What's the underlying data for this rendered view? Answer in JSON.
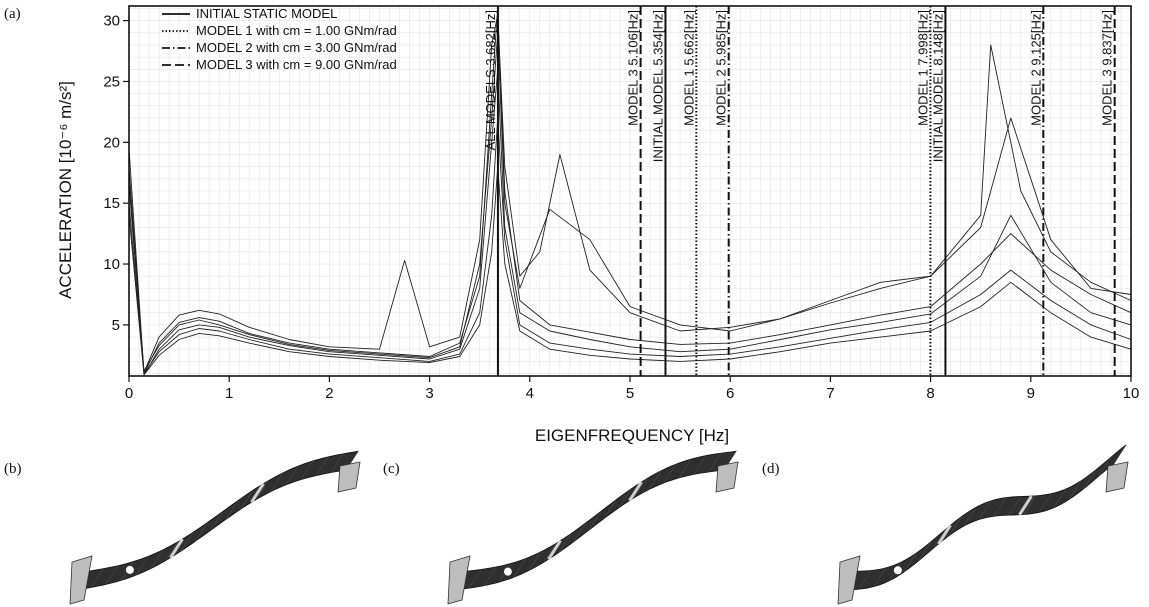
{
  "chart_data": [
    {
      "type": "line",
      "panel_label": "(a)",
      "title": "",
      "xlabel": "EIGENFREQUENCY [Hz]",
      "ylabel": "ACCELERATION [10⁻⁶ m/s²]",
      "xlim": [
        0,
        10
      ],
      "ylim": [
        0.8,
        31.2
      ],
      "x_ticks": [
        0,
        1,
        2,
        3,
        4,
        5,
        6,
        7,
        8,
        9,
        10
      ],
      "y_ticks": [
        5,
        10,
        15,
        20,
        25,
        30
      ],
      "grid": true,
      "legend_position": "top-left",
      "legend": [
        {
          "label": "INITIAL STATIC MODEL",
          "style": "solid"
        },
        {
          "label": "MODEL 1 with cm = 1.00 GNm/rad",
          "style": "dotted"
        },
        {
          "label": "MODEL 2 with cm = 3.00 GNm/rad",
          "style": "dashdot"
        },
        {
          "label": "MODEL 3 with cm = 9.00 GNm/rad",
          "style": "dashed"
        }
      ],
      "vertical_lines": [
        {
          "x": 3.682,
          "label": "ALL MODELS 3.682[Hz]",
          "style": "solid"
        },
        {
          "x": 5.106,
          "label": "MODEL 3   5.106[Hz]",
          "style": "dashed"
        },
        {
          "x": 5.354,
          "label": "INITIAL MODEL   5.354[Hz]",
          "style": "solid"
        },
        {
          "x": 5.662,
          "label": "MODEL 1   5.662[Hz]",
          "style": "dotted"
        },
        {
          "x": 5.985,
          "label": "MODEL 2   5.985[Hz]",
          "style": "dashdot"
        },
        {
          "x": 7.998,
          "label": "MODEL 1   7.998[Hz]",
          "style": "dotted"
        },
        {
          "x": 8.148,
          "label": "INITIAL MODEL   8.148[Hz]",
          "style": "solid"
        },
        {
          "x": 9.125,
          "label": "MODEL 2   9.125[Hz]",
          "style": "dashdot"
        },
        {
          "x": 9.837,
          "label": "MODEL 3   9.837[Hz]",
          "style": "dashed"
        }
      ],
      "series": [
        {
          "values_x": [
            0,
            0.15,
            0.3,
            0.5,
            0.7,
            0.9,
            1.2,
            1.6,
            2.0,
            2.5,
            3.0,
            3.3,
            3.5,
            3.62,
            3.68,
            3.75,
            3.9,
            4.2,
            4.6,
            5.0,
            5.5,
            6.0,
            6.5,
            7.0,
            7.5,
            8.0,
            8.5,
            8.8,
            9.2,
            9.6,
            10.0
          ],
          "values_y": [
            19.5,
            1.0,
            3.5,
            5.2,
            5.6,
            5.3,
            4.3,
            3.5,
            3.0,
            2.7,
            2.4,
            3.5,
            9.0,
            24.0,
            31.0,
            16.0,
            7.0,
            5.0,
            4.4,
            3.8,
            3.4,
            3.5,
            4.2,
            5.0,
            5.8,
            6.5,
            10.0,
            12.5,
            9.5,
            7.5,
            6.0
          ]
        },
        {
          "values_x": [
            0,
            0.15,
            0.3,
            0.5,
            0.7,
            0.9,
            1.2,
            1.6,
            2.0,
            2.5,
            3.0,
            3.3,
            3.5,
            3.62,
            3.68,
            3.75,
            3.9,
            4.2,
            4.6,
            5.0,
            5.5,
            6.0,
            6.5,
            7.0,
            7.5,
            8.0,
            8.5,
            8.8,
            9.2,
            9.6,
            10.0
          ],
          "values_y": [
            18.0,
            0.9,
            3.0,
            4.6,
            5.0,
            4.8,
            4.0,
            3.3,
            2.8,
            2.5,
            2.2,
            3.0,
            8.0,
            20.0,
            26.0,
            13.0,
            6.0,
            4.5,
            3.8,
            3.2,
            2.8,
            3.0,
            3.8,
            4.6,
            5.2,
            5.9,
            9.0,
            14.0,
            8.5,
            6.0,
            5.0
          ]
        },
        {
          "values_x": [
            0,
            0.15,
            0.3,
            0.5,
            0.7,
            0.9,
            1.2,
            1.6,
            2.0,
            2.5,
            2.75,
            3.0,
            3.3,
            3.5,
            3.62,
            3.68,
            3.75,
            3.9,
            4.1,
            4.3,
            4.6,
            5.0,
            5.5,
            6.0,
            6.5,
            7.0,
            7.5,
            8.0,
            8.5,
            8.6,
            8.9,
            9.2,
            9.6,
            10.0
          ],
          "values_y": [
            16.5,
            1.1,
            4.0,
            5.8,
            6.2,
            5.9,
            4.8,
            3.8,
            3.2,
            3.0,
            10.3,
            3.2,
            4.0,
            12.0,
            28.0,
            30.5,
            18.0,
            9.0,
            11.0,
            19.0,
            9.5,
            6.0,
            4.5,
            4.8,
            5.5,
            6.8,
            8.0,
            9.0,
            14.0,
            28.0,
            16.0,
            11.0,
            8.5,
            7.0
          ]
        },
        {
          "values_x": [
            0,
            0.15,
            0.3,
            0.5,
            0.7,
            0.9,
            1.2,
            1.6,
            2.0,
            2.5,
            3.0,
            3.3,
            3.5,
            3.62,
            3.68,
            3.75,
            3.9,
            4.2,
            4.6,
            5.0,
            5.5,
            6.0,
            6.5,
            7.0,
            7.5,
            8.0,
            8.5,
            8.8,
            9.2,
            9.6,
            10.0
          ],
          "values_y": [
            15.0,
            1.0,
            2.8,
            4.2,
            4.7,
            4.5,
            3.8,
            3.0,
            2.6,
            2.3,
            2.0,
            2.6,
            6.0,
            14.0,
            22.0,
            12.0,
            5.0,
            3.5,
            3.0,
            2.6,
            2.4,
            2.6,
            3.2,
            3.9,
            4.6,
            5.2,
            7.5,
            9.5,
            7.0,
            5.0,
            3.8
          ]
        },
        {
          "values_x": [
            0,
            0.15,
            0.3,
            0.5,
            0.7,
            0.9,
            1.2,
            1.6,
            2.0,
            2.5,
            3.0,
            3.3,
            3.5,
            3.62,
            3.68,
            3.75,
            3.9,
            4.2,
            4.6,
            5.0,
            5.5,
            6.0,
            6.5,
            7.0,
            7.5,
            8.0,
            8.5,
            8.8,
            9.2,
            9.6,
            10.0
          ],
          "values_y": [
            17.0,
            1.2,
            3.3,
            5.0,
            5.4,
            5.0,
            4.2,
            3.4,
            2.9,
            2.6,
            2.3,
            3.2,
            10.0,
            22.0,
            29.0,
            15.0,
            8.0,
            14.5,
            12.0,
            6.5,
            5.0,
            4.5,
            5.5,
            7.0,
            8.5,
            9.0,
            13.0,
            22.0,
            12.0,
            8.0,
            7.5
          ]
        },
        {
          "values_x": [
            0,
            0.15,
            0.3,
            0.5,
            0.7,
            0.9,
            1.2,
            1.6,
            2.0,
            2.5,
            3.0,
            3.3,
            3.5,
            3.62,
            3.68,
            3.75,
            3.9,
            4.2,
            4.6,
            5.0,
            5.5,
            6.0,
            6.5,
            7.0,
            7.5,
            8.0,
            8.5,
            8.8,
            9.2,
            9.6,
            10.0
          ],
          "values_y": [
            14.0,
            0.9,
            2.5,
            3.8,
            4.3,
            4.1,
            3.5,
            2.8,
            2.4,
            2.1,
            1.9,
            2.4,
            5.0,
            11.0,
            18.0,
            10.0,
            4.5,
            3.0,
            2.5,
            2.2,
            2.0,
            2.2,
            2.8,
            3.5,
            4.0,
            4.5,
            6.5,
            8.5,
            6.0,
            4.0,
            3.0
          ]
        }
      ]
    }
  ],
  "deformed_shapes": [
    {
      "panel_label": "(b)"
    },
    {
      "panel_label": "(c)"
    },
    {
      "panel_label": "(d)"
    }
  ]
}
